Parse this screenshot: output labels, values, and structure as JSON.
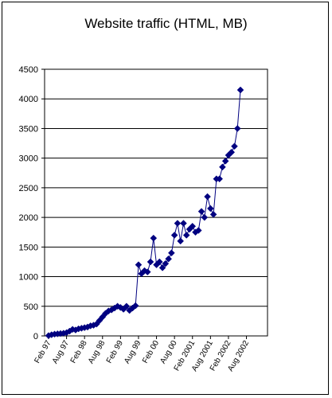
{
  "chart_data": {
    "type": "line",
    "title": "Website traffic (HTML, MB)",
    "xlabel": "",
    "ylabel": "",
    "ylim": [
      0,
      4500
    ],
    "yticks": [
      0,
      500,
      1000,
      1500,
      2000,
      2500,
      3000,
      3500,
      4000,
      4500
    ],
    "grid": "horizontal",
    "legend": "none",
    "colors": {
      "series": "#000080",
      "grid": "#000000",
      "border": "#000000"
    },
    "x_tick_labels": [
      "Feb 97",
      "Aug 97",
      "Feb 98",
      "Aug 98",
      "Feb 99",
      "Aug 99",
      "Feb 00",
      "Aug 00",
      "Feb 2001",
      "Aug 2001",
      "Feb 2002",
      "Aug 2002"
    ],
    "series": [
      {
        "values": [
          5,
          20,
          30,
          35,
          40,
          45,
          55,
          80,
          110,
          100,
          120,
          130,
          140,
          150,
          170,
          180,
          200,
          260,
          320,
          380,
          420,
          440,
          470,
          500,
          480,
          450,
          500,
          430,
          470,
          510,
          1200,
          1050,
          1100,
          1080,
          1250,
          1650,
          1200,
          1250,
          1150,
          1220,
          1300,
          1400,
          1700,
          1900,
          1600,
          1900,
          1700,
          1800,
          1850,
          1750,
          1780,
          2100,
          2000,
          2350,
          2150,
          2050,
          2650,
          2650,
          2850,
          2950,
          3050,
          3100,
          3200,
          3500,
          4150
        ]
      }
    ]
  }
}
